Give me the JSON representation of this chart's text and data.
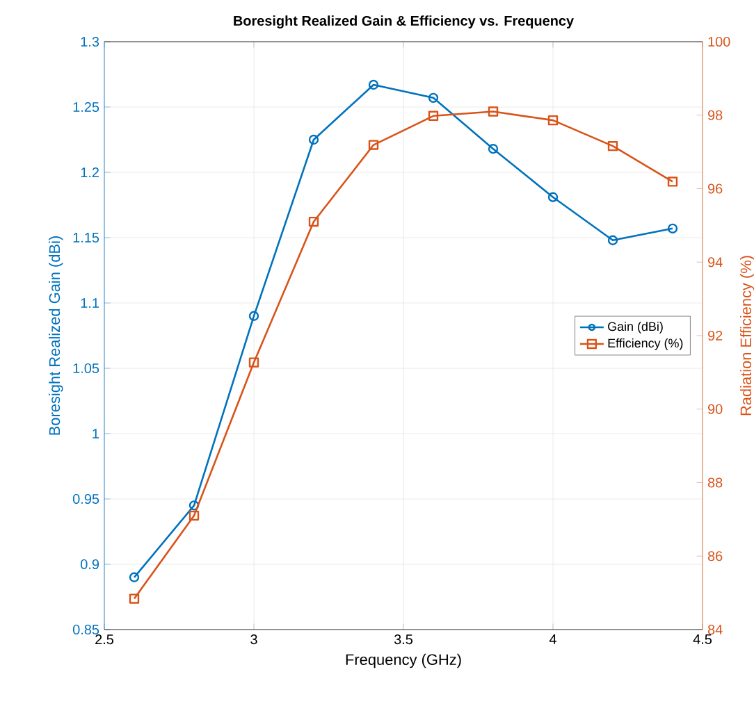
{
  "chart_data": {
    "type": "line",
    "title": "Boresight Realized Gain & Efficiency vs. Frequency",
    "xlabel": "Frequency (GHz)",
    "ylabel": "Boresight Realized Gain (dBi)",
    "y2label": "Radiation Efficiency (%)",
    "x": [
      2.6,
      2.8,
      3.0,
      3.2,
      3.4,
      3.6,
      3.8,
      4.0,
      4.2,
      4.4
    ],
    "series": [
      {
        "name": "Gain (dBi)",
        "color": "#0072bd",
        "marker": "circle",
        "values": [
          0.89,
          0.945,
          1.09,
          1.225,
          1.267,
          1.257,
          1.218,
          1.181,
          1.148,
          1.157
        ]
      },
      {
        "name": "Efficiency (%)",
        "color": "#d95319",
        "marker": "square",
        "axis": "y2",
        "values": [
          84.84,
          87.1,
          91.27,
          95.1,
          97.19,
          97.98,
          98.1,
          97.86,
          97.16,
          96.19
        ]
      }
    ],
    "xlim": [
      2.5,
      4.5
    ],
    "xticks": [
      2.5,
      3,
      3.5,
      4,
      4.5
    ],
    "ylim": [
      0.85,
      1.3
    ],
    "yticks": [
      0.85,
      0.9,
      0.95,
      1,
      1.05,
      1.1,
      1.15,
      1.2,
      1.25,
      1.3
    ],
    "y2lim": [
      84,
      100
    ],
    "y2ticks": [
      84,
      86,
      88,
      90,
      92,
      94,
      96,
      98,
      100
    ],
    "grid": true,
    "legend": "right",
    "line_style": "solid"
  }
}
